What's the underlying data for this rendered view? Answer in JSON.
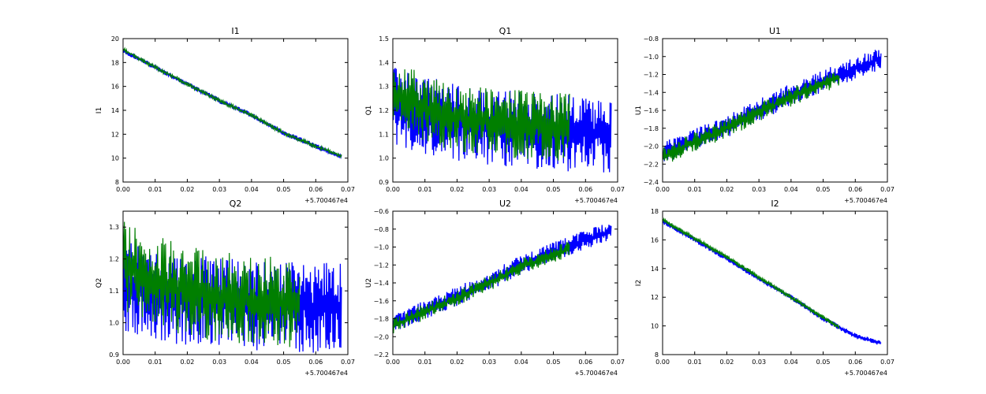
{
  "figure": {
    "description_layout": "2x3 grid of line plots, two series (blue, green) each",
    "series_colors": [
      "#0000ff",
      "#007f00"
    ]
  },
  "chart_data": [
    {
      "type": "line",
      "title": "I1",
      "ylabel": "I1",
      "xlabel": "",
      "x_offset_label": "+5.700467e4",
      "xlim": [
        0.0,
        0.07
      ],
      "ylim": [
        8,
        20
      ],
      "xticks": [
        "0.00",
        "0.01",
        "0.02",
        "0.03",
        "0.04",
        "0.05",
        "0.06",
        "0.07"
      ],
      "yticks": [
        "8",
        "10",
        "12",
        "14",
        "16",
        "18",
        "20"
      ],
      "x_extent": [
        0.0,
        0.068
      ],
      "series": [
        {
          "name": "series-blue",
          "color": "#0000ff",
          "trend": [
            [
              0.0,
              19.0
            ],
            [
              0.01,
              17.6
            ],
            [
              0.02,
              16.2
            ],
            [
              0.03,
              14.8
            ],
            [
              0.04,
              13.6
            ],
            [
              0.05,
              12.1
            ],
            [
              0.06,
              11.0
            ],
            [
              0.068,
              10.1
            ]
          ],
          "noise": 0.12,
          "density": 1
        },
        {
          "name": "series-green",
          "color": "#007f00",
          "trend": [
            [
              0.0,
              19.1
            ],
            [
              0.01,
              17.6
            ],
            [
              0.02,
              16.2
            ],
            [
              0.03,
              14.8
            ],
            [
              0.04,
              13.6
            ],
            [
              0.05,
              12.1
            ],
            [
              0.06,
              11.0
            ],
            [
              0.068,
              10.2
            ]
          ],
          "noise": 0.1,
          "density": 0.7
        }
      ]
    },
    {
      "type": "line",
      "title": "Q1",
      "ylabel": "Q1",
      "xlabel": "",
      "x_offset_label": "+5.700467e4",
      "xlim": [
        0.0,
        0.07
      ],
      "ylim": [
        0.9,
        1.5
      ],
      "xticks": [
        "0.00",
        "0.01",
        "0.02",
        "0.03",
        "0.04",
        "0.05",
        "0.06",
        "0.07"
      ],
      "yticks": [
        "0.9",
        "1.0",
        "1.1",
        "1.2",
        "1.3",
        "1.4",
        "1.5"
      ],
      "x_extent": [
        0.0,
        0.068
      ],
      "series": [
        {
          "name": "series-blue",
          "color": "#0000ff",
          "trend": [
            [
              0.0,
              1.22
            ],
            [
              0.01,
              1.18
            ],
            [
              0.02,
              1.15
            ],
            [
              0.03,
              1.13
            ],
            [
              0.04,
              1.12
            ],
            [
              0.05,
              1.11
            ],
            [
              0.06,
              1.1
            ],
            [
              0.068,
              1.1
            ]
          ],
          "noise": 0.09,
          "density": 1
        },
        {
          "name": "series-green",
          "color": "#007f00",
          "trend": [
            [
              0.0,
              1.28
            ],
            [
              0.01,
              1.2
            ],
            [
              0.02,
              1.17
            ],
            [
              0.03,
              1.15
            ],
            [
              0.04,
              1.14
            ],
            [
              0.05,
              1.13
            ],
            [
              0.055,
              1.13
            ]
          ],
          "noise": 0.08,
          "density": 0.7
        }
      ]
    },
    {
      "type": "line",
      "title": "U1",
      "ylabel": "U1",
      "xlabel": "",
      "x_offset_label": "+5.700467e4",
      "xlim": [
        0.0,
        0.07
      ],
      "ylim": [
        -2.4,
        -0.8
      ],
      "xticks": [
        "0.00",
        "0.01",
        "0.02",
        "0.03",
        "0.04",
        "0.05",
        "0.06",
        "0.07"
      ],
      "yticks": [
        "−2.4",
        "−2.2",
        "−2.0",
        "−1.8",
        "−1.6",
        "−1.4",
        "−1.2",
        "−1.0",
        "−0.8"
      ],
      "x_extent": [
        0.0,
        0.068
      ],
      "series": [
        {
          "name": "series-blue",
          "color": "#0000ff",
          "trend": [
            [
              0.0,
              -2.08
            ],
            [
              0.01,
              -1.93
            ],
            [
              0.02,
              -1.78
            ],
            [
              0.03,
              -1.6
            ],
            [
              0.04,
              -1.42
            ],
            [
              0.05,
              -1.27
            ],
            [
              0.06,
              -1.13
            ],
            [
              0.068,
              -1.02
            ]
          ],
          "noise": 0.07,
          "density": 1
        },
        {
          "name": "series-green",
          "color": "#007f00",
          "trend": [
            [
              0.0,
              -2.12
            ],
            [
              0.01,
              -1.95
            ],
            [
              0.02,
              -1.8
            ],
            [
              0.03,
              -1.62
            ],
            [
              0.04,
              -1.45
            ],
            [
              0.05,
              -1.3
            ],
            [
              0.055,
              -1.24
            ]
          ],
          "noise": 0.06,
          "density": 0.7
        }
      ]
    },
    {
      "type": "line",
      "title": "Q2",
      "ylabel": "Q2",
      "xlabel": "",
      "x_offset_label": "+5.700467e4",
      "xlim": [
        0.0,
        0.07
      ],
      "ylim": [
        0.9,
        1.35
      ],
      "xticks": [
        "0.00",
        "0.01",
        "0.02",
        "0.03",
        "0.04",
        "0.05",
        "0.06",
        "0.07"
      ],
      "yticks": [
        "0.9",
        "1.0",
        "1.1",
        "1.2",
        "1.3"
      ],
      "x_extent": [
        0.0,
        0.068
      ],
      "series": [
        {
          "name": "series-blue",
          "color": "#0000ff",
          "trend": [
            [
              0.0,
              1.12
            ],
            [
              0.01,
              1.09
            ],
            [
              0.02,
              1.07
            ],
            [
              0.03,
              1.06
            ],
            [
              0.04,
              1.05
            ],
            [
              0.05,
              1.05
            ],
            [
              0.06,
              1.05
            ],
            [
              0.068,
              1.05
            ]
          ],
          "noise": 0.08,
          "density": 1
        },
        {
          "name": "series-green",
          "color": "#007f00",
          "trend": [
            [
              0.0,
              1.18
            ],
            [
              0.01,
              1.13
            ],
            [
              0.02,
              1.1
            ],
            [
              0.03,
              1.08
            ],
            [
              0.04,
              1.07
            ],
            [
              0.05,
              1.06
            ],
            [
              0.055,
              1.06
            ]
          ],
          "noise": 0.08,
          "density": 0.7
        }
      ]
    },
    {
      "type": "line",
      "title": "U2",
      "ylabel": "U2",
      "xlabel": "",
      "x_offset_label": "+5.700467e4",
      "xlim": [
        0.0,
        0.07
      ],
      "ylim": [
        -2.2,
        -0.6
      ],
      "xticks": [
        "0.00",
        "0.01",
        "0.02",
        "0.03",
        "0.04",
        "0.05",
        "0.06",
        "0.07"
      ],
      "yticks": [
        "−2.2",
        "−2.0",
        "−1.8",
        "−1.6",
        "−1.4",
        "−1.2",
        "−1.0",
        "−0.8",
        "−0.6"
      ],
      "x_extent": [
        0.0,
        0.068
      ],
      "series": [
        {
          "name": "series-blue",
          "color": "#0000ff",
          "trend": [
            [
              0.0,
              -1.85
            ],
            [
              0.01,
              -1.7
            ],
            [
              0.02,
              -1.55
            ],
            [
              0.03,
              -1.38
            ],
            [
              0.04,
              -1.2
            ],
            [
              0.05,
              -1.05
            ],
            [
              0.06,
              -0.92
            ],
            [
              0.068,
              -0.82
            ]
          ],
          "noise": 0.06,
          "density": 1
        },
        {
          "name": "series-green",
          "color": "#007f00",
          "trend": [
            [
              0.0,
              -1.88
            ],
            [
              0.01,
              -1.72
            ],
            [
              0.02,
              -1.57
            ],
            [
              0.03,
              -1.4
            ],
            [
              0.04,
              -1.22
            ],
            [
              0.05,
              -1.08
            ],
            [
              0.055,
              -1.02
            ]
          ],
          "noise": 0.05,
          "density": 0.7
        }
      ]
    },
    {
      "type": "line",
      "title": "I2",
      "ylabel": "I2",
      "xlabel": "",
      "x_offset_label": "+5.700467e4",
      "xlim": [
        0.0,
        0.07
      ],
      "ylim": [
        8,
        18
      ],
      "xticks": [
        "0.00",
        "0.01",
        "0.02",
        "0.03",
        "0.04",
        "0.05",
        "0.06",
        "0.07"
      ],
      "yticks": [
        "8",
        "10",
        "12",
        "14",
        "16",
        "18"
      ],
      "x_extent": [
        0.0,
        0.068
      ],
      "series": [
        {
          "name": "series-blue",
          "color": "#0000ff",
          "trend": [
            [
              0.0,
              17.3
            ],
            [
              0.01,
              16.0
            ],
            [
              0.02,
              14.7
            ],
            [
              0.03,
              13.3
            ],
            [
              0.04,
              12.0
            ],
            [
              0.05,
              10.5
            ],
            [
              0.06,
              9.3
            ],
            [
              0.068,
              8.8
            ]
          ],
          "noise": 0.1,
          "density": 1
        },
        {
          "name": "series-green",
          "color": "#007f00",
          "trend": [
            [
              0.0,
              17.4
            ],
            [
              0.01,
              16.1
            ],
            [
              0.02,
              14.8
            ],
            [
              0.03,
              13.4
            ],
            [
              0.04,
              12.0
            ],
            [
              0.05,
              10.6
            ],
            [
              0.055,
              9.9
            ]
          ],
          "noise": 0.08,
          "density": 0.7
        }
      ]
    }
  ]
}
